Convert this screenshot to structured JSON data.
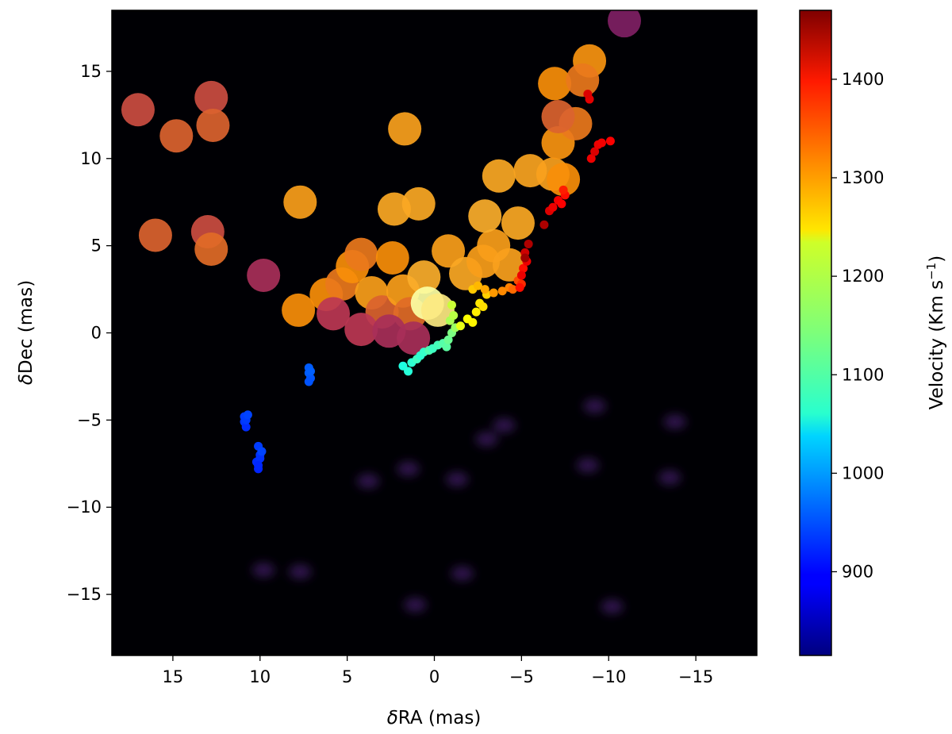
{
  "chart_data": {
    "type": "scatter",
    "xlabel": "δRA (mas)",
    "ylabel": "δDec (mas)",
    "xlim": [
      18.5,
      -18.5
    ],
    "ylim": [
      -18.5,
      18.5
    ],
    "xticks": [
      15,
      10,
      5,
      0,
      -5,
      -10,
      -15
    ],
    "yticks": [
      15,
      10,
      5,
      0,
      -5,
      -10,
      -15
    ],
    "xtick_labels": [
      "15",
      "10",
      "5",
      "0",
      "−5",
      "−10",
      "−15"
    ],
    "ytick_labels": [
      "15",
      "10",
      "5",
      "0",
      "−5",
      "−10",
      "−15"
    ],
    "background_color": "#000004",
    "colorbar": {
      "label": "Velocity (Km s",
      "label_sup": "−1",
      "label_close": ")",
      "range": [
        815,
        1470
      ],
      "ticks": [
        900,
        1000,
        1100,
        1200,
        1300,
        1400
      ],
      "tick_labels": [
        "900",
        "1000",
        "1100",
        "1200",
        "1300",
        "1400"
      ],
      "colormap": "jet"
    },
    "image_blobs": [
      {
        "x": 17,
        "y": 12.8,
        "intensity": 0.55
      },
      {
        "x": 14.8,
        "y": 11.3,
        "intensity": 0.6
      },
      {
        "x": 12.8,
        "y": 13.5,
        "intensity": 0.55
      },
      {
        "x": 12.7,
        "y": 11.9,
        "intensity": 0.6
      },
      {
        "x": 16,
        "y": 5.6,
        "intensity": 0.6
      },
      {
        "x": 13,
        "y": 5.8,
        "intensity": 0.55
      },
      {
        "x": 12.8,
        "y": 4.8,
        "intensity": 0.62
      },
      {
        "x": 9.8,
        "y": 3.3,
        "intensity": 0.45
      },
      {
        "x": 7.7,
        "y": 7.5,
        "intensity": 0.75
      },
      {
        "x": 7.8,
        "y": 1.3,
        "intensity": 0.7
      },
      {
        "x": 6.2,
        "y": 2.2,
        "intensity": 0.7
      },
      {
        "x": 5.3,
        "y": 2.8,
        "intensity": 0.65
      },
      {
        "x": 4.7,
        "y": 3.8,
        "intensity": 0.7
      },
      {
        "x": 4.2,
        "y": 4.5,
        "intensity": 0.65
      },
      {
        "x": 3.6,
        "y": 2.3,
        "intensity": 0.75
      },
      {
        "x": 3.0,
        "y": 1.2,
        "intensity": 0.6
      },
      {
        "x": 2.4,
        "y": 4.3,
        "intensity": 0.7
      },
      {
        "x": 1.8,
        "y": 2.4,
        "intensity": 0.75
      },
      {
        "x": 1.4,
        "y": 1.1,
        "intensity": 0.62
      },
      {
        "x": 0.6,
        "y": 3.2,
        "intensity": 0.8
      },
      {
        "x": 0.4,
        "y": 1.7,
        "intensity": 1.0
      },
      {
        "x": -0.2,
        "y": 1.3,
        "intensity": 0.95
      },
      {
        "x": -0.8,
        "y": 4.7,
        "intensity": 0.75
      },
      {
        "x": -1.8,
        "y": 3.4,
        "intensity": 0.78
      },
      {
        "x": -2.8,
        "y": 4.1,
        "intensity": 0.75
      },
      {
        "x": -3.4,
        "y": 5.0,
        "intensity": 0.75
      },
      {
        "x": -4.3,
        "y": 3.9,
        "intensity": 0.76
      },
      {
        "x": 2.3,
        "y": 7.1,
        "intensity": 0.78
      },
      {
        "x": 0.9,
        "y": 7.4,
        "intensity": 0.78
      },
      {
        "x": 1.7,
        "y": 11.7,
        "intensity": 0.76
      },
      {
        "x": -2.9,
        "y": 6.7,
        "intensity": 0.8
      },
      {
        "x": -4.8,
        "y": 6.3,
        "intensity": 0.78
      },
      {
        "x": -3.7,
        "y": 9.0,
        "intensity": 0.78
      },
      {
        "x": -5.5,
        "y": 9.3,
        "intensity": 0.77
      },
      {
        "x": -6.8,
        "y": 9.1,
        "intensity": 0.76
      },
      {
        "x": -7.1,
        "y": 10.9,
        "intensity": 0.72
      },
      {
        "x": -8.1,
        "y": 12.0,
        "intensity": 0.65
      },
      {
        "x": -7.1,
        "y": 12.4,
        "intensity": 0.6
      },
      {
        "x": -6.9,
        "y": 14.3,
        "intensity": 0.7
      },
      {
        "x": -8.9,
        "y": 15.6,
        "intensity": 0.72
      },
      {
        "x": -8.5,
        "y": 14.5,
        "intensity": 0.65
      },
      {
        "x": -10.9,
        "y": 17.9,
        "intensity": 0.35
      },
      {
        "x": -7.4,
        "y": 8.8,
        "intensity": 0.7
      },
      {
        "x": 5.8,
        "y": 1.1,
        "intensity": 0.5
      },
      {
        "x": 4.2,
        "y": 0.2,
        "intensity": 0.5
      },
      {
        "x": 2.6,
        "y": 0.1,
        "intensity": 0.45
      },
      {
        "x": 1.2,
        "y": -0.3,
        "intensity": 0.45
      }
    ],
    "faint_wisps": [
      {
        "x": 3.8,
        "y": -8.5
      },
      {
        "x": 1.5,
        "y": -7.8
      },
      {
        "x": -1.3,
        "y": -8.4
      },
      {
        "x": -3.0,
        "y": -6.1
      },
      {
        "x": -4.0,
        "y": -5.3
      },
      {
        "x": -8.8,
        "y": -7.6
      },
      {
        "x": -13.5,
        "y": -8.3
      },
      {
        "x": -13.8,
        "y": -5.1
      },
      {
        "x": -9.2,
        "y": -4.2
      },
      {
        "x": 9.8,
        "y": -13.6
      },
      {
        "x": 7.7,
        "y": -13.7
      },
      {
        "x": -1.6,
        "y": -13.8
      },
      {
        "x": 1.1,
        "y": -15.6
      },
      {
        "x": -10.2,
        "y": -15.7
      }
    ],
    "series": [
      {
        "name": "",
        "x": [
          10.9,
          10.9,
          10.8,
          10.8,
          10.7,
          10.1,
          10.0,
          10.2,
          10.1,
          10.0,
          9.9,
          10.1,
          7.2,
          7.2,
          7.1,
          7.2,
          7.1,
          1.8,
          1.5,
          1.3,
          1.0,
          0.8,
          0.6,
          0.3,
          0.1,
          -0.2,
          -0.5,
          -0.7,
          -0.8,
          -1.0,
          -1.2,
          -0.9,
          -1.1,
          -1.0,
          -1.5,
          -1.9,
          -2.2,
          -2.4,
          -2.6,
          -2.8,
          -3.0,
          -2.2,
          -2.5,
          -2.9,
          -3.4,
          -3.9,
          -4.3,
          -4.5,
          -4.8,
          -5.0,
          -5.1,
          -5.3,
          -5.2,
          -5.4,
          -5.0,
          -5.2,
          -4.9,
          -6.3,
          -6.6,
          -6.8,
          -7.1,
          -7.3,
          -7.5,
          -7.4,
          -9.0,
          -9.2,
          -9.4,
          -9.6,
          -10.1,
          -8.9,
          -8.8
        ],
        "y": [
          -4.8,
          -5.1,
          -5.4,
          -5.0,
          -4.7,
          -6.5,
          -7.0,
          -7.4,
          -7.8,
          -7.2,
          -6.8,
          -7.6,
          -2.0,
          -2.3,
          -2.6,
          -2.8,
          -2.2,
          -1.9,
          -2.2,
          -1.7,
          -1.5,
          -1.3,
          -1.1,
          -1.0,
          -0.9,
          -0.7,
          -0.6,
          -0.8,
          -0.4,
          0.0,
          0.3,
          0.7,
          1.0,
          1.6,
          0.4,
          0.8,
          0.6,
          1.2,
          1.7,
          1.5,
          2.2,
          2.5,
          2.7,
          2.5,
          2.3,
          2.4,
          2.6,
          2.5,
          3.0,
          2.8,
          3.7,
          4.1,
          4.6,
          5.1,
          3.3,
          4.3,
          2.6,
          6.2,
          7.0,
          7.2,
          7.6,
          7.4,
          7.9,
          8.2,
          10.0,
          10.4,
          10.8,
          10.9,
          11.0,
          13.4,
          13.7
        ],
        "velocity": [
          935,
          930,
          925,
          935,
          940,
          935,
          930,
          925,
          920,
          928,
          940,
          922,
          955,
          955,
          952,
          950,
          958,
          1080,
          1085,
          1090,
          1100,
          1090,
          1095,
          1110,
          1100,
          1105,
          1115,
          1120,
          1130,
          1140,
          1160,
          1170,
          1180,
          1190,
          1210,
          1225,
          1230,
          1235,
          1240,
          1245,
          1255,
          1260,
          1270,
          1280,
          1290,
          1300,
          1305,
          1320,
          1340,
          1360,
          1380,
          1400,
          1420,
          1440,
          1400,
          1450,
          1380,
          1440,
          1410,
          1400,
          1395,
          1390,
          1380,
          1370,
          1400,
          1410,
          1400,
          1395,
          1390,
          1405,
          1410
        ]
      }
    ]
  }
}
